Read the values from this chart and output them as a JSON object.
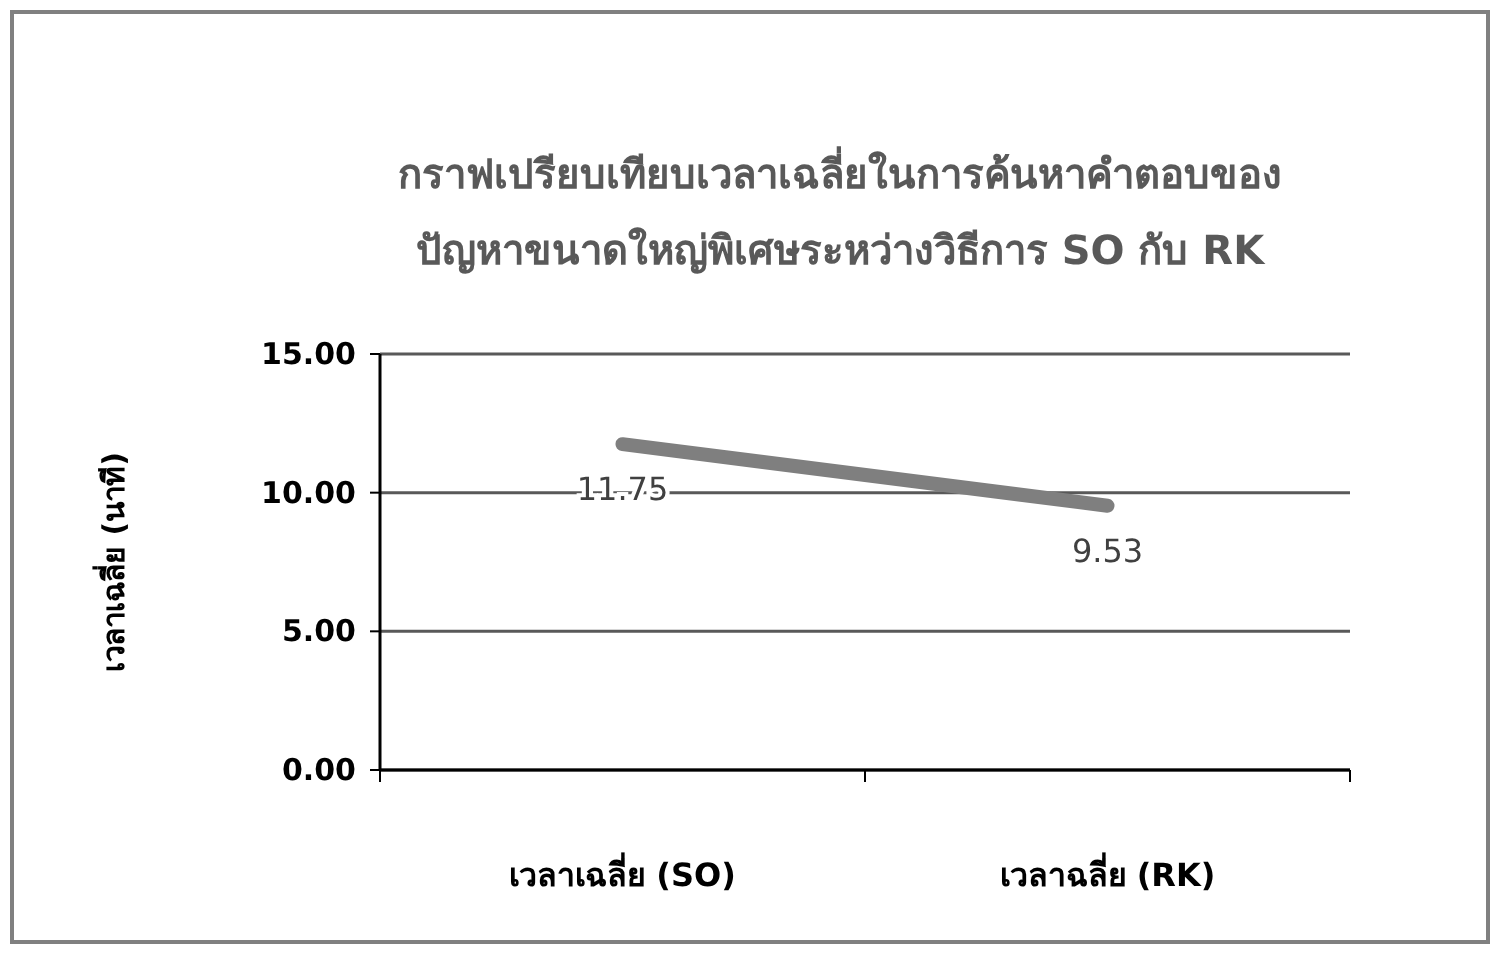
{
  "chart_data": {
    "type": "line",
    "title": "กราฟเปรียบเทียบเวลาเฉลี่ยในการค้นหาคำตอบของ\nปัญหาขนาดใหญ่พิเศษระหว่างวิธีการ SO กับ RK",
    "ylabel": "เวลาเฉลี่ย (นาที)",
    "categories": [
      "เวลาเฉลี่ย (SO)",
      "เวลาฉลี่ย (RK)"
    ],
    "series": [
      {
        "color": "#7f7f7f",
        "values": [
          11.75,
          9.53
        ]
      }
    ],
    "ylim": [
      0,
      15
    ],
    "yticks": [
      {
        "value": 0,
        "label": "0.00"
      },
      {
        "value": 5,
        "label": "5.00"
      },
      {
        "value": 10,
        "label": "10.00"
      },
      {
        "value": 15,
        "label": "15.00"
      }
    ],
    "grid": "y",
    "data_labels": true
  }
}
